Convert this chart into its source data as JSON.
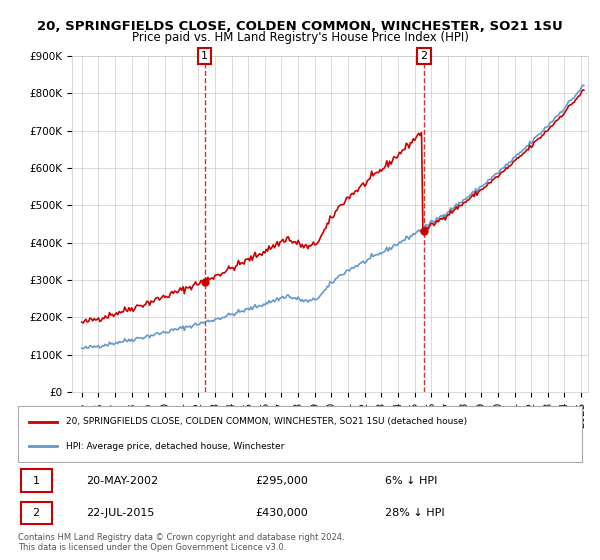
{
  "title_line1": "20, SPRINGFIELDS CLOSE, COLDEN COMMON, WINCHESTER, SO21 1SU",
  "title_line2": "Price paid vs. HM Land Registry's House Price Index (HPI)",
  "ylabel_vals": [
    "£0",
    "£100K",
    "£200K",
    "£300K",
    "£400K",
    "£500K",
    "£600K",
    "£700K",
    "£800K",
    "£900K"
  ],
  "ylim": [
    0,
    900000
  ],
  "yticks": [
    0,
    100000,
    200000,
    300000,
    400000,
    500000,
    600000,
    700000,
    800000,
    900000
  ],
  "sale1_date": "2002-05-20",
  "sale1_price": 295000,
  "sale2_date": "2015-07-22",
  "sale2_price": 430000,
  "sale_color": "#cc0000",
  "hpi_color": "#6699cc",
  "legend_sale_label": "20, SPRINGFIELDS CLOSE, COLDEN COMMON, WINCHESTER, SO21 1SU (detached house)",
  "legend_hpi_label": "HPI: Average price, detached house, Winchester",
  "annotation1_label": "1",
  "annotation1_date": "20-MAY-2002",
  "annotation1_price": "£295,000",
  "annotation1_pct": "6% ↓ HPI",
  "annotation2_label": "2",
  "annotation2_date": "22-JUL-2015",
  "annotation2_price": "£430,000",
  "annotation2_pct": "28% ↓ HPI",
  "footer_line1": "Contains HM Land Registry data © Crown copyright and database right 2024.",
  "footer_line2": "This data is licensed under the Open Government Licence v3.0.",
  "bg_color": "#ffffff",
  "plot_bg_color": "#ffffff",
  "grid_color": "#cccccc"
}
